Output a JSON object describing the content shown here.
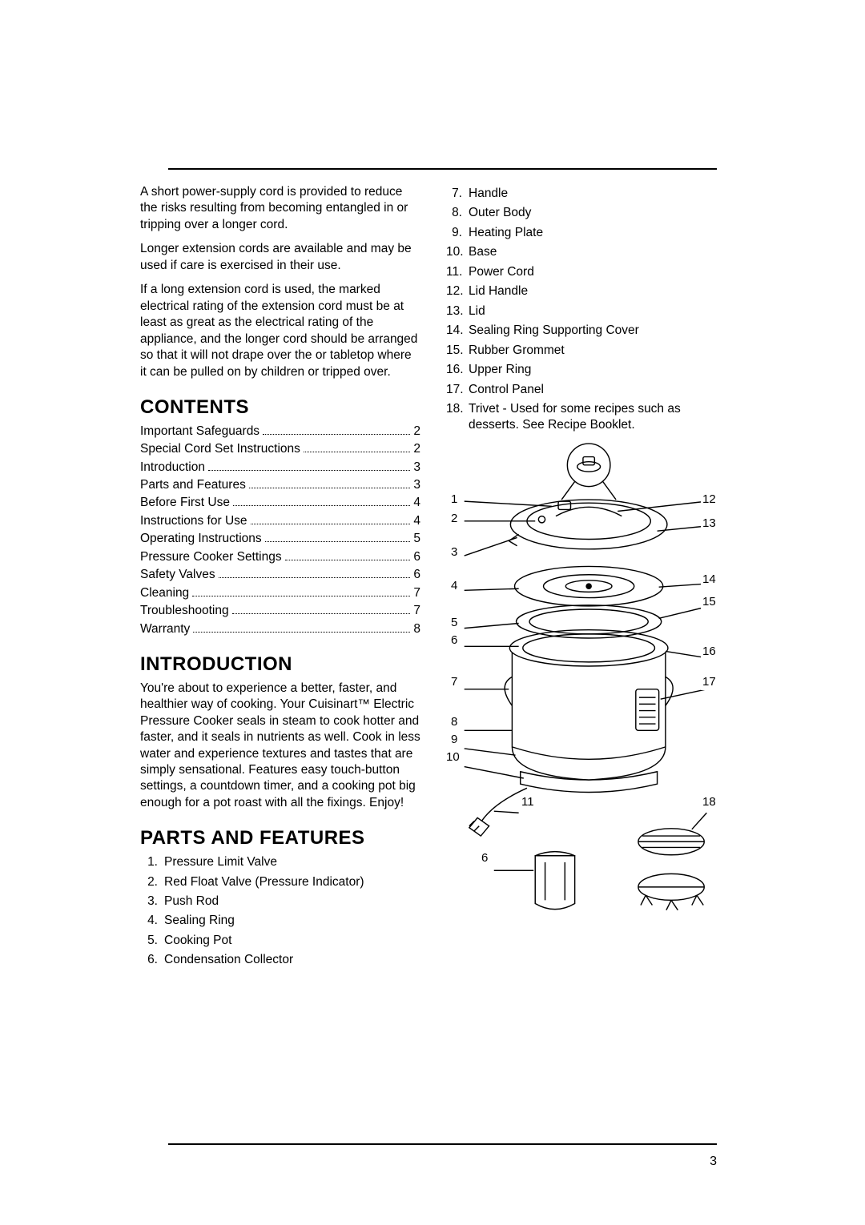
{
  "page_number": "3",
  "left_col": {
    "p1": "A short power-supply cord is provided to reduce the risks resulting from becoming entangled in or tripping over a longer cord.",
    "p2": "Longer extension cords are available and  may be used if care is exercised in their use.",
    "p3": "If a long extension cord is used, the marked electrical rating of the extension cord must be at least as great as the electrical rating of the appliance, and the longer cord should be arranged so that it will not drape over the or tabletop where it can be pulled on by children or tripped over.",
    "contents_heading": "CONTENTS",
    "toc": [
      {
        "label": "Important Safeguards",
        "page": "2"
      },
      {
        "label": "Special Cord Set Instructions",
        "page": "2"
      },
      {
        "label": "Introduction",
        "page": "3"
      },
      {
        "label": "Parts and Features",
        "page": "3"
      },
      {
        "label": "Before First Use",
        "page": "4"
      },
      {
        "label": "Instructions for Use",
        "page": "4"
      },
      {
        "label": "Operating Instructions",
        "page": "5"
      },
      {
        "label": "Pressure Cooker Settings",
        "page": "6"
      },
      {
        "label": "Safety Valves",
        "page": "6"
      },
      {
        "label": "Cleaning",
        "page": "7"
      },
      {
        "label": "Troubleshooting",
        "page": "7"
      },
      {
        "label": "Warranty",
        "page": "8"
      }
    ],
    "intro_heading": "INTRODUCTION",
    "intro_body": "You're about to experience a better, faster, and healthier way of cooking. Your Cuisinart™ Electric Pressure Cooker seals in steam to cook hotter and faster, and it seals in nutrients as well. Cook in less water and experience textures and tastes that are simply sensational. Features easy touch-button settings, a countdown timer, and a cooking pot big enough for a pot roast with all the fixings. Enjoy!",
    "parts_heading": "PARTS AND FEATURES",
    "parts_left": [
      {
        "n": "1.",
        "t": "Pressure Limit Valve"
      },
      {
        "n": "2.",
        "t": "Red Float Valve (Pressure Indicator)"
      },
      {
        "n": "3.",
        "t": "Push Rod"
      },
      {
        "n": "4.",
        "t": "Sealing Ring"
      },
      {
        "n": "5.",
        "t": "Cooking Pot"
      },
      {
        "n": "6.",
        "t": "Condensation Collector"
      }
    ]
  },
  "right_col": {
    "parts_right": [
      {
        "n": "7.",
        "t": "Handle"
      },
      {
        "n": "8.",
        "t": "Outer Body"
      },
      {
        "n": "9.",
        "t": "Heating Plate"
      },
      {
        "n": "10.",
        "t": "Base"
      },
      {
        "n": "11.",
        "t": "Power Cord"
      },
      {
        "n": "12.",
        "t": "Lid Handle"
      },
      {
        "n": "13.",
        "t": "Lid"
      },
      {
        "n": "14.",
        "t": "Sealing Ring Supporting Cover"
      },
      {
        "n": "15.",
        "t": "Rubber Grommet"
      },
      {
        "n": "16.",
        "t": "Upper Ring"
      },
      {
        "n": "17.",
        "t": "Control Panel"
      },
      {
        "n": "18.",
        "t": "Trivet - Used for some recipes such as desserts. See Recipe Booklet."
      }
    ],
    "callouts_left": [
      "1",
      "2",
      "3",
      "4",
      "5",
      "6",
      "7",
      "8",
      "9",
      "10"
    ],
    "callouts_right": [
      "12",
      "13",
      "14",
      "15",
      "16",
      "17"
    ],
    "callout_11": "11",
    "callout_18": "18",
    "callout_6b": "6"
  },
  "style": {
    "stroke": "#000000",
    "stroke_width": 1.4,
    "bg": "#ffffff"
  }
}
